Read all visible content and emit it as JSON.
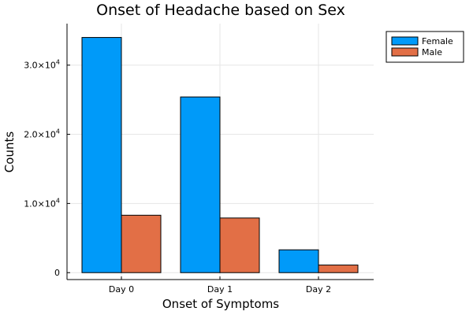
{
  "chart_data": {
    "type": "bar",
    "title": "Onset of Headache based on Sex",
    "xlabel": "Onset of Symptoms",
    "ylabel": "Counts",
    "categories": [
      "Day 0",
      "Day 1",
      "Day 2"
    ],
    "series": [
      {
        "name": "Female",
        "values": [
          34000,
          25400,
          3300
        ],
        "color": "#009af9"
      },
      {
        "name": "Male",
        "values": [
          8300,
          7900,
          1100
        ],
        "color": "#e26f46"
      }
    ],
    "ylim": [
      0,
      35000
    ],
    "yticks": [
      {
        "value": 0,
        "mantissa": "0",
        "exponent": ""
      },
      {
        "value": 10000,
        "mantissa": "1.0×10",
        "exponent": "4"
      },
      {
        "value": 20000,
        "mantissa": "2.0×10",
        "exponent": "4"
      },
      {
        "value": 30000,
        "mantissa": "3.0×10",
        "exponent": "4"
      }
    ],
    "grid": true,
    "legend_position": "top-right"
  }
}
